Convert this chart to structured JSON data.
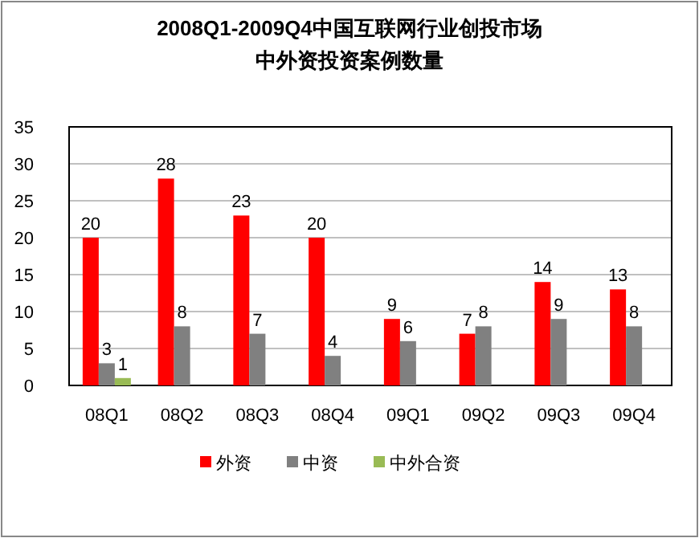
{
  "chart_data": {
    "type": "bar",
    "title": "2008Q1-2009Q4中国互联网行业创投市场",
    "subtitle": "中外资投资案例数量",
    "categories": [
      "08Q1",
      "08Q2",
      "08Q3",
      "08Q4",
      "09Q1",
      "09Q2",
      "09Q3",
      "09Q4"
    ],
    "series": [
      {
        "name": "外资",
        "color": "#ff0000",
        "values": [
          20,
          28,
          23,
          20,
          9,
          7,
          14,
          13
        ],
        "value_labels": [
          "20",
          "28",
          "23",
          "20",
          "9",
          "7",
          "14",
          "13"
        ]
      },
      {
        "name": "中资",
        "color": "#808080",
        "values": [
          3,
          8,
          7,
          4,
          6,
          8,
          9,
          8
        ],
        "value_labels": [
          "3",
          "8",
          "7",
          "4",
          "6",
          "8",
          "9",
          "8"
        ]
      },
      {
        "name": "中外合资",
        "color": "#99bb55",
        "values": [
          1,
          0,
          0,
          0,
          0,
          0,
          0,
          0
        ],
        "value_labels": [
          "1",
          null,
          null,
          null,
          null,
          null,
          null,
          null
        ]
      }
    ],
    "ylim": [
      0,
      35
    ],
    "yticks": [
      0,
      5,
      10,
      15,
      20,
      25,
      30,
      35
    ],
    "grid": "y",
    "legend": "bottom"
  }
}
